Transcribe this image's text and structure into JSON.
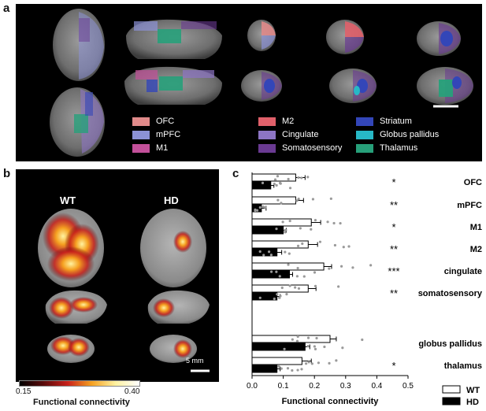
{
  "figure": {
    "panel_labels": {
      "a": "a",
      "b": "b",
      "c": "c"
    },
    "panel_a": {
      "legend": [
        {
          "label": "OFC",
          "color": "#e08a8a"
        },
        {
          "label": "mPFC",
          "color": "#8c92d6"
        },
        {
          "label": "M1",
          "color": "#c3509a"
        },
        {
          "label": "M2",
          "color": "#e0606a"
        },
        {
          "label": "Cingulate",
          "color": "#8d75c4"
        },
        {
          "label": "Somatosensory",
          "color": "#6a3a92"
        },
        {
          "label": "Striatum",
          "color": "#3346b8"
        },
        {
          "label": "Globus pallidus",
          "color": "#27b8c6"
        },
        {
          "label": "Thalamus",
          "color": "#27a07a"
        }
      ]
    },
    "panel_b": {
      "group_wt": "WT",
      "group_hd": "HD",
      "scale_bar": "5 mm",
      "colorbar_min": "0.15",
      "colorbar_max": "0.40",
      "colorbar_title": "Functional connectivity"
    }
  },
  "chart_data": {
    "type": "bar",
    "orientation": "horizontal",
    "categories": [
      "OFC",
      "mPFC",
      "M1",
      "M2",
      "cingulate",
      "somatosensory",
      "globus pallidus",
      "thalamus"
    ],
    "series": [
      {
        "name": "WT",
        "values": [
          0.14,
          0.14,
          0.19,
          0.18,
          0.23,
          0.18,
          0.25,
          0.16
        ],
        "errors": [
          0.03,
          0.025,
          0.03,
          0.03,
          0.025,
          0.025,
          0.02,
          0.03
        ],
        "color": "#ffffff"
      },
      {
        "name": "HD",
        "values": [
          0.06,
          0.03,
          0.1,
          0.08,
          0.12,
          0.08,
          0.17,
          0.08
        ],
        "errors": [
          0.01,
          0.015,
          0.01,
          0.015,
          0.01,
          0.01,
          0.015,
          0.01
        ],
        "color": "#000000"
      }
    ],
    "significance": [
      "*",
      "**",
      "*",
      "**",
      "***",
      "**",
      "",
      "*"
    ],
    "xlabel": "Functional connectivity",
    "xlim": [
      0.0,
      0.5
    ],
    "xticks": [
      "0.0",
      "0.1",
      "0.2",
      "0.3",
      "0.4",
      "0.5"
    ],
    "legend_position": "bottom-right"
  }
}
